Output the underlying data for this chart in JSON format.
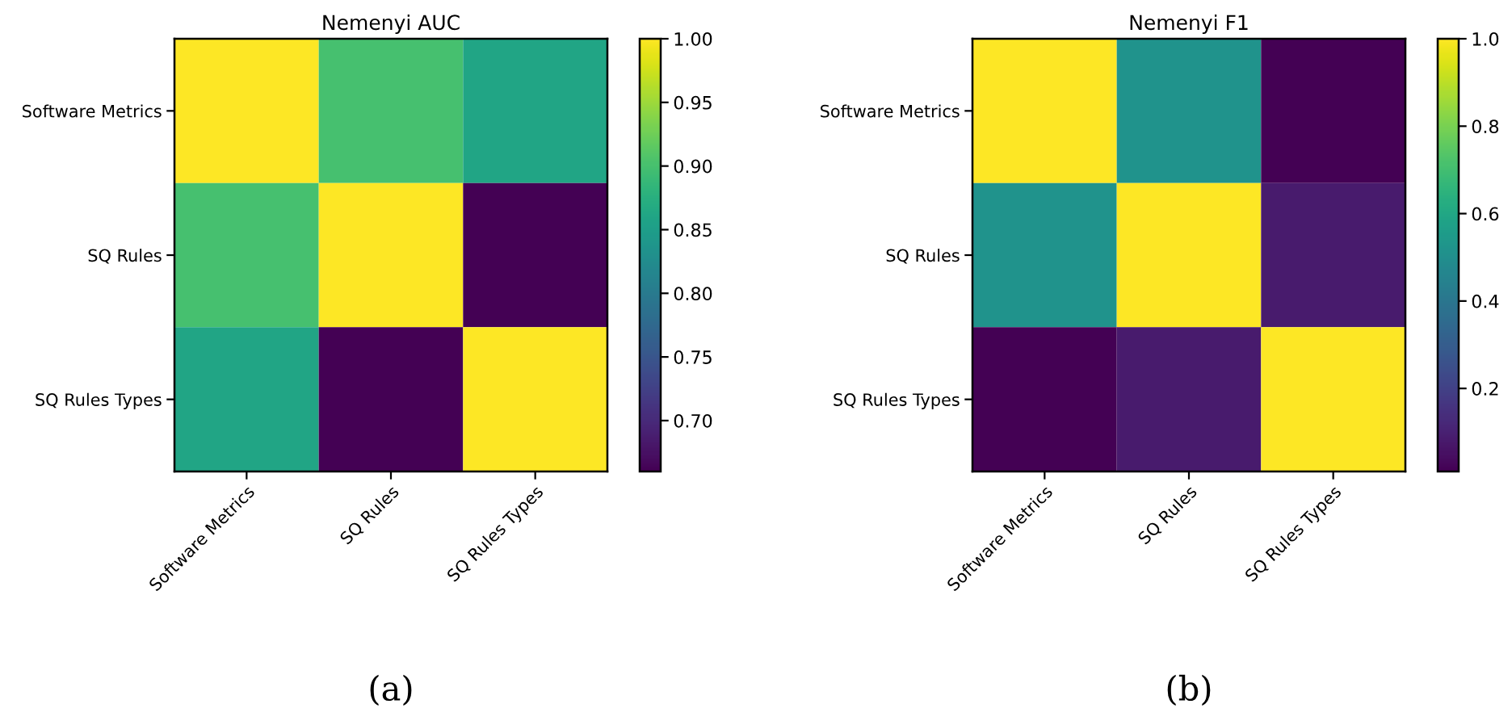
{
  "chart_data": [
    {
      "type": "heatmap",
      "title": "Nemenyi AUC",
      "categories": [
        "Software Metrics",
        "SQ Rules",
        "SQ Rules Types"
      ],
      "y_categories": [
        "Software Metrics",
        "SQ Rules",
        "SQ Rules Types"
      ],
      "cells": [
        [
          1.0,
          0.9,
          0.86
        ],
        [
          0.9,
          1.0,
          0.66
        ],
        [
          0.86,
          0.66,
          1.0
        ]
      ],
      "clim": [
        0.66,
        1.0
      ],
      "cticks": [
        {
          "value": 0.7,
          "label": "0.70"
        },
        {
          "value": 0.75,
          "label": "0.75"
        },
        {
          "value": 0.8,
          "label": "0.80"
        },
        {
          "value": 0.85,
          "label": "0.85"
        },
        {
          "value": 0.9,
          "label": "0.90"
        },
        {
          "value": 0.95,
          "label": "0.95"
        },
        {
          "value": 1.0,
          "label": "1.00"
        }
      ],
      "annotations": [
        "(a)"
      ]
    },
    {
      "type": "heatmap",
      "title": "Nemenyi F1",
      "categories": [
        "Software Metrics",
        "SQ Rules",
        "SQ Rules Types"
      ],
      "y_categories": [
        "Software Metrics",
        "SQ Rules",
        "SQ Rules Types"
      ],
      "cells": [
        [
          1.0,
          0.52,
          0.01
        ],
        [
          0.52,
          1.0,
          0.08
        ],
        [
          0.01,
          0.08,
          1.0
        ]
      ],
      "clim": [
        0.01,
        1.0
      ],
      "cticks": [
        {
          "value": 0.2,
          "label": "0.2"
        },
        {
          "value": 0.4,
          "label": "0.4"
        },
        {
          "value": 0.6,
          "label": "0.6"
        },
        {
          "value": 0.8,
          "label": "0.8"
        },
        {
          "value": 1.0,
          "label": "1.0"
        }
      ],
      "annotations": [
        "(b)"
      ]
    }
  ]
}
